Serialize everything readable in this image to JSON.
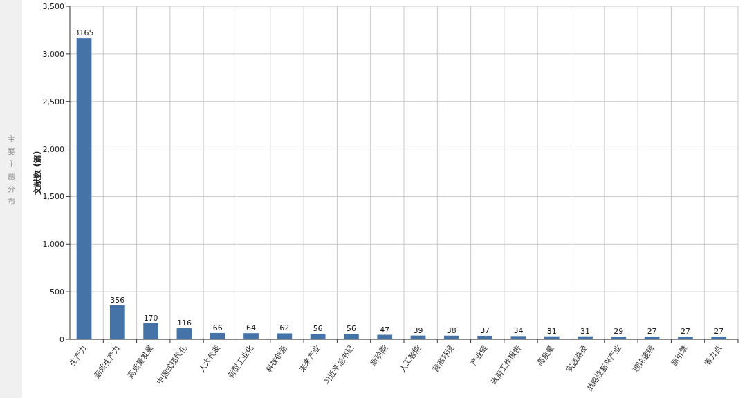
{
  "chart_data": {
    "type": "bar",
    "ylabel": "文献数 (篇)",
    "categories": [
      "生产力",
      "新质生产力",
      "高质量发展",
      "中国式现代化",
      "人大代表",
      "新型工业化",
      "科技创新",
      "未来产业",
      "习近平总书记",
      "新动能",
      "人工智能",
      "营商环境",
      "产业链",
      "政府工作报告",
      "高质量",
      "实践路径",
      "战略性新兴产业",
      "理论逻辑",
      "新引擎",
      "着力点"
    ],
    "values": [
      3165,
      356,
      170,
      116,
      66,
      64,
      62,
      56,
      56,
      47,
      39,
      38,
      37,
      34,
      31,
      31,
      29,
      27,
      27,
      27
    ],
    "color": "#4572a7",
    "data_labels": true,
    "grid": true,
    "ylim": [
      0,
      3500
    ],
    "yticks": [
      0,
      500,
      {
        "value": 1000,
        "label": "1,000"
      },
      {
        "value": 1500,
        "label": "1,500"
      },
      {
        "value": 2000,
        "label": "2,000"
      },
      {
        "value": 2500,
        "label": "2,500"
      },
      {
        "value": 3000,
        "label": "3,000"
      },
      {
        "value": 3500,
        "label": "3,500"
      }
    ],
    "annotations": [
      "主要主题分布"
    ]
  }
}
